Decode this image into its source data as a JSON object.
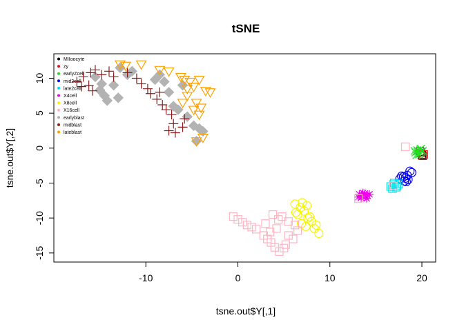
{
  "chart_data": {
    "type": "scatter",
    "title": "tSNE",
    "xlabel": "tsne.out$Y[,1]",
    "ylabel": "tsne.out$Y[,2]",
    "xlim": [
      -20,
      21.5
    ],
    "ylim": [
      -16.3,
      13.5
    ],
    "xticks": [
      -10,
      0,
      10,
      20
    ],
    "yticks": [
      -15,
      -10,
      -5,
      0,
      5,
      10
    ],
    "legend_position": "top-left",
    "series": [
      {
        "name": "MIIoocyte",
        "color": "#000000",
        "shape": "square",
        "points": [
          [
            20.0,
            -1.0
          ],
          [
            19.8,
            -0.5
          ]
        ]
      },
      {
        "name": "zy",
        "color": "#e8101a",
        "shape": "square",
        "points": [
          [
            20.1,
            -1.1
          ],
          [
            19.9,
            -0.7
          ],
          [
            20.2,
            -0.9
          ]
        ]
      },
      {
        "name": "earlyZcell",
        "color": "#22dd22",
        "shape": "x",
        "points": [
          [
            19.3,
            -0.6
          ],
          [
            19.5,
            -0.3
          ],
          [
            19.8,
            -0.2
          ],
          [
            20.0,
            -0.5
          ],
          [
            19.6,
            -0.8
          ],
          [
            19.4,
            -1.0
          ],
          [
            19.9,
            -0.1
          ],
          [
            19.7,
            -0.9
          ],
          [
            20.1,
            -0.4
          ],
          [
            19.5,
            -0.5
          ],
          [
            19.2,
            -0.4
          ],
          [
            19.8,
            -0.6
          ]
        ]
      },
      {
        "name": "mid2cell",
        "color": "#0000ee",
        "shape": "circle",
        "points": [
          [
            17.8,
            -4.0
          ],
          [
            18.2,
            -4.3
          ],
          [
            18.4,
            -3.9
          ],
          [
            18.1,
            -4.7
          ],
          [
            18.5,
            -4.5
          ],
          [
            17.6,
            -4.4
          ],
          [
            18.7,
            -3.3
          ],
          [
            18.9,
            -3.5
          ],
          [
            18.0,
            -4.1
          ],
          [
            18.3,
            -4.8
          ]
        ]
      },
      {
        "name": "late2cell",
        "color": "#00e5ee",
        "shape": "square",
        "points": [
          [
            16.6,
            -5.5
          ],
          [
            16.9,
            -5.2
          ],
          [
            17.2,
            -5.6
          ],
          [
            17.5,
            -5.1
          ],
          [
            16.8,
            -5.8
          ],
          [
            17.0,
            -5.0
          ],
          [
            17.3,
            -5.4
          ]
        ]
      },
      {
        "name": "X4cell",
        "color": "#ee00ee",
        "shape": "asterisk",
        "points": [
          [
            13.2,
            -6.6
          ],
          [
            13.5,
            -6.9
          ],
          [
            13.8,
            -6.5
          ],
          [
            14.1,
            -6.8
          ],
          [
            13.4,
            -7.1
          ],
          [
            14.3,
            -6.6
          ],
          [
            14.0,
            -7.2
          ],
          [
            13.6,
            -6.4
          ],
          [
            13.1,
            -7.0
          ],
          [
            13.9,
            -6.9
          ]
        ]
      },
      {
        "name": "X8cell",
        "color": "#f5f500",
        "shape": "circle",
        "points": [
          [
            6.2,
            -8.0
          ],
          [
            6.8,
            -8.5
          ],
          [
            7.2,
            -9.0
          ],
          [
            7.5,
            -8.2
          ],
          [
            6.5,
            -9.5
          ],
          [
            7.8,
            -9.8
          ],
          [
            8.0,
            -10.5
          ],
          [
            6.9,
            -10.8
          ],
          [
            7.4,
            -11.2
          ],
          [
            8.3,
            -11.5
          ],
          [
            8.8,
            -12.2
          ],
          [
            6.3,
            -9.2
          ],
          [
            7.0,
            -7.8
          ],
          [
            8.5,
            -11.0
          ],
          [
            7.6,
            -10.0
          ]
        ]
      },
      {
        "name": "X16cell",
        "color": "#ffb3c1",
        "shape": "square",
        "points": [
          [
            -0.5,
            -9.8
          ],
          [
            0.0,
            -10.2
          ],
          [
            0.5,
            -10.6
          ],
          [
            1.0,
            -11.0
          ],
          [
            1.5,
            -11.3
          ],
          [
            2.0,
            -11.6
          ],
          [
            2.8,
            -12.5
          ],
          [
            3.2,
            -13.0
          ],
          [
            3.6,
            -13.5
          ],
          [
            4.0,
            -14.2
          ],
          [
            4.5,
            -14.8
          ],
          [
            5.0,
            -14.3
          ],
          [
            3.5,
            -12.0
          ],
          [
            4.2,
            -11.5
          ],
          [
            5.5,
            -12.5
          ],
          [
            6.0,
            -13.0
          ],
          [
            3.8,
            -9.5
          ],
          [
            4.8,
            -9.8
          ],
          [
            5.5,
            -10.5
          ],
          [
            6.2,
            -11.0
          ],
          [
            3.0,
            -10.8
          ],
          [
            5.2,
            -13.8
          ],
          [
            6.5,
            -11.8
          ],
          [
            4.4,
            -10.2
          ],
          [
            13.1,
            -7.2
          ],
          [
            18.2,
            0.2
          ],
          [
            16.9,
            -5.4
          ]
        ]
      },
      {
        "name": "earlyblast",
        "color": "#b3b3b3",
        "shape": "diamond",
        "points": [
          [
            -14.5,
            7.5
          ],
          [
            -14.2,
            6.8
          ],
          [
            -15.0,
            8.3
          ],
          [
            -13.5,
            9.0
          ],
          [
            -14.8,
            9.2
          ],
          [
            -12.0,
            10.5
          ],
          [
            -11.5,
            11.0
          ],
          [
            -9.0,
            9.8
          ],
          [
            -8.5,
            10.5
          ],
          [
            -8.0,
            9.5
          ],
          [
            -7.5,
            8.0
          ],
          [
            -7.0,
            6.0
          ],
          [
            -6.5,
            5.5
          ],
          [
            -5.5,
            4.5
          ],
          [
            -4.8,
            3.2
          ],
          [
            -4.2,
            2.8
          ],
          [
            -3.8,
            2.4
          ],
          [
            -4.5,
            1.0
          ],
          [
            -13.0,
            7.2
          ],
          [
            -6.0,
            9.0
          ],
          [
            -12.8,
            11.5
          ],
          [
            -15.5,
            10.2
          ]
        ]
      },
      {
        "name": "midblast",
        "color": "#8b1a1a",
        "shape": "plus",
        "points": [
          [
            -17.5,
            9.5
          ],
          [
            -16.8,
            10.2
          ],
          [
            -16.0,
            10.8
          ],
          [
            -15.5,
            11.2
          ],
          [
            -14.8,
            10.5
          ],
          [
            -14.0,
            11.0
          ],
          [
            -13.5,
            10.2
          ],
          [
            -17.0,
            8.8
          ],
          [
            -16.2,
            9.0
          ],
          [
            -15.8,
            8.2
          ],
          [
            -11.0,
            10.0
          ],
          [
            -10.5,
            9.2
          ],
          [
            -9.8,
            8.5
          ],
          [
            -9.5,
            7.8
          ],
          [
            -8.8,
            7.0
          ],
          [
            -8.2,
            6.2
          ],
          [
            -7.8,
            5.5
          ],
          [
            -7.2,
            4.8
          ],
          [
            -7.0,
            3.5
          ],
          [
            -7.5,
            2.5
          ],
          [
            -6.8,
            2.2
          ],
          [
            -6.0,
            3.0
          ],
          [
            -5.8,
            4.2
          ],
          [
            -8.5,
            8.0
          ],
          [
            -12.0,
            10.8
          ]
        ]
      },
      {
        "name": "lateblast",
        "color": "#ffa000",
        "shape": "triangle-down",
        "points": [
          [
            -12.8,
            12.0
          ],
          [
            -12.2,
            11.8
          ],
          [
            -10.5,
            12.0
          ],
          [
            -8.5,
            11.2
          ],
          [
            -7.5,
            11.0
          ],
          [
            -6.2,
            10.2
          ],
          [
            -5.8,
            9.8
          ],
          [
            -5.2,
            9.5
          ],
          [
            -4.8,
            8.8
          ],
          [
            -4.2,
            9.8
          ],
          [
            -3.5,
            8.2
          ],
          [
            -3.0,
            8.0
          ],
          [
            -5.5,
            8.5
          ],
          [
            -4.5,
            6.5
          ],
          [
            -4.0,
            5.8
          ],
          [
            -4.8,
            5.5
          ],
          [
            -4.2,
            4.8
          ],
          [
            -5.5,
            7.5
          ],
          [
            -3.8,
            1.5
          ],
          [
            -4.5,
            1.0
          ],
          [
            -6.0,
            6.5
          ]
        ]
      }
    ]
  }
}
